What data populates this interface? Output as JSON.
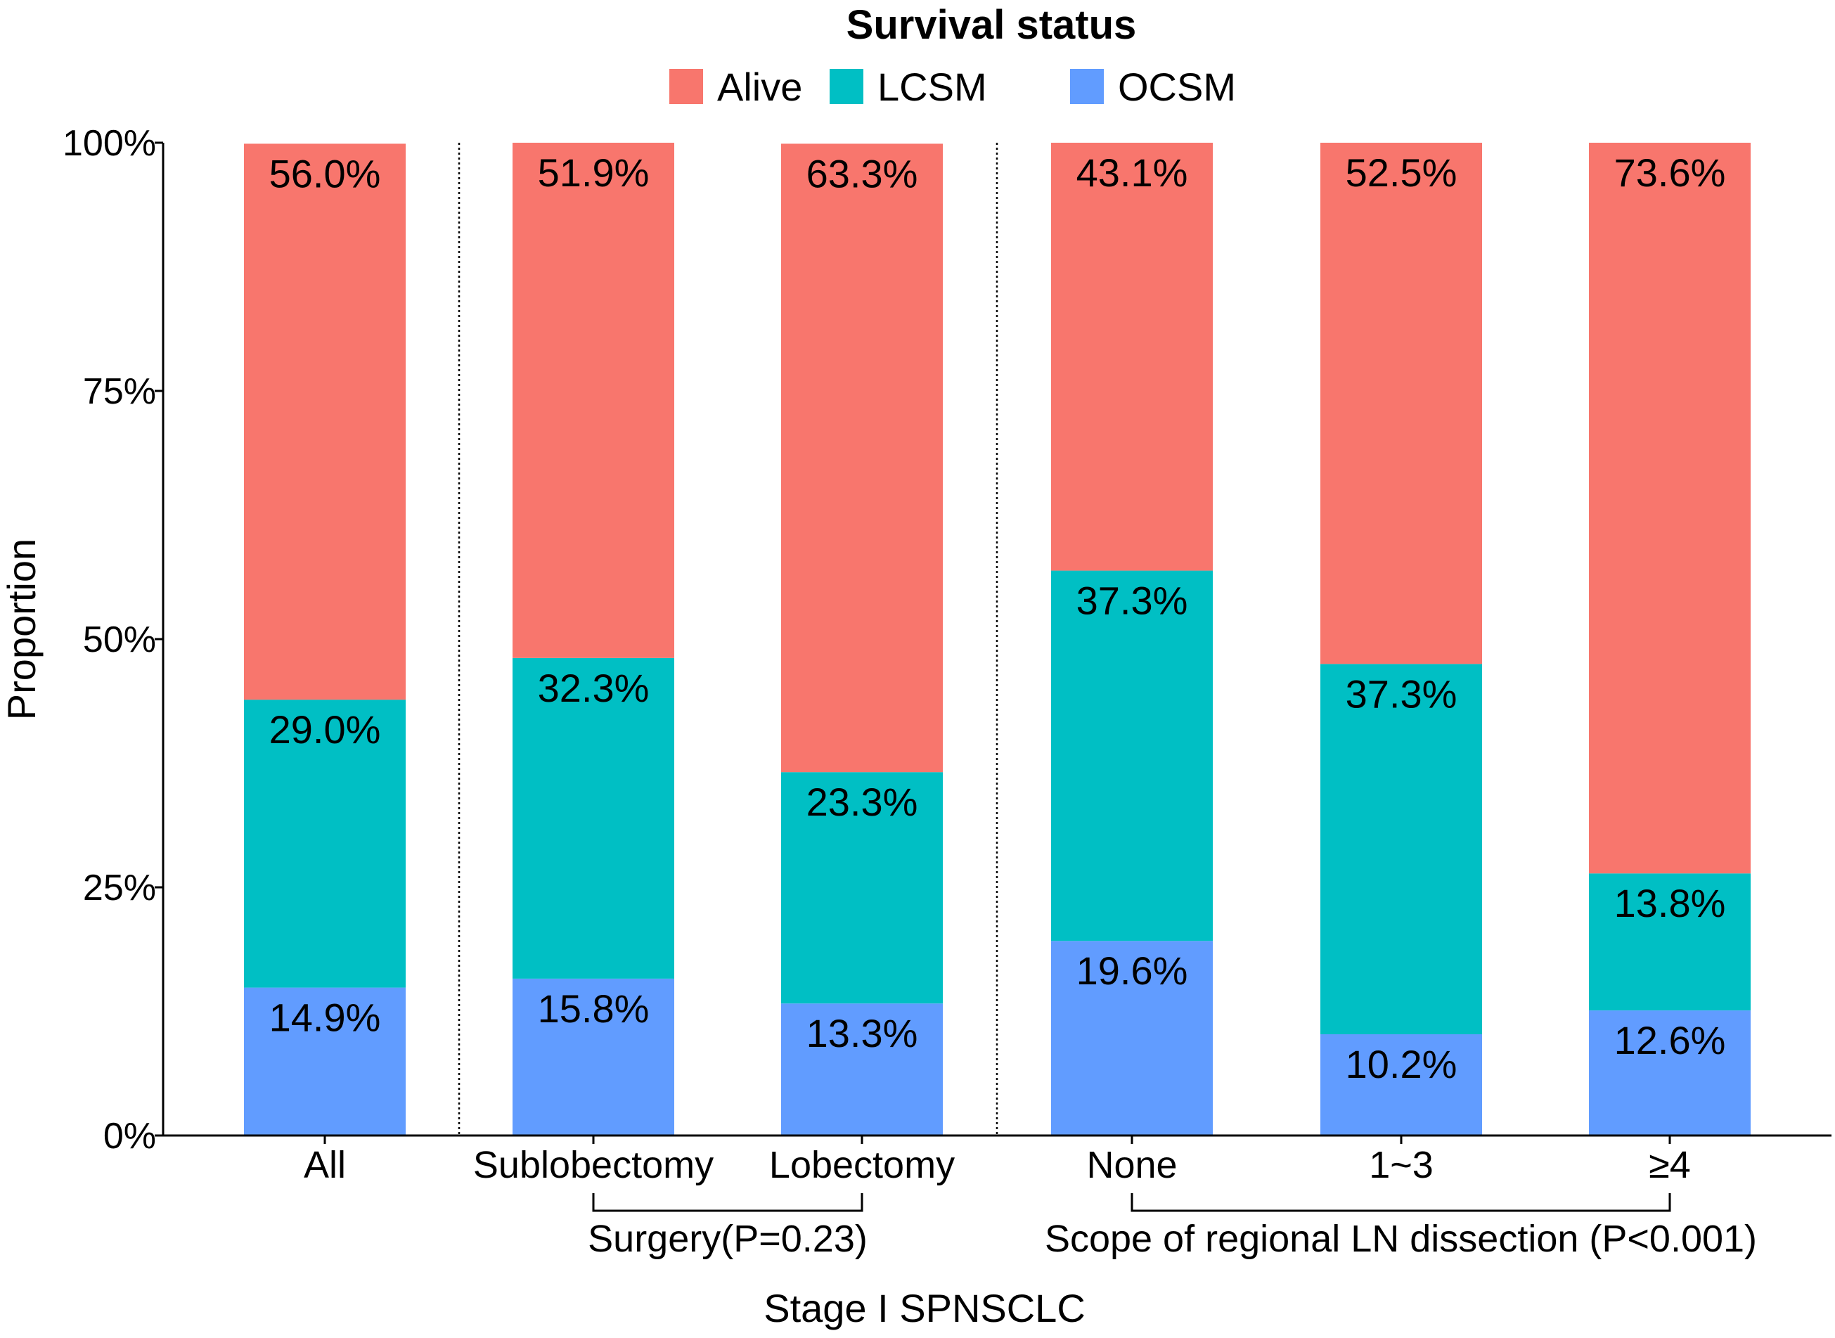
{
  "chart_data": {
    "type": "bar",
    "stacked": true,
    "title": "Survival status",
    "xlabel": "Stage I SPNSCLC",
    "ylabel": "Proportion",
    "ylim": [
      0,
      100
    ],
    "yticks": [
      0,
      25,
      50,
      75,
      100
    ],
    "ytick_labels": [
      "0%",
      "25%",
      "50%",
      "75%",
      "100%"
    ],
    "categories": [
      "All",
      "Sublobectomy",
      "Lobectomy",
      "None",
      "1~3",
      "≥4"
    ],
    "stack_order": [
      "OCSM",
      "LCSM",
      "Alive"
    ],
    "series": [
      {
        "name": "Alive",
        "color": "#F8766D",
        "values": [
          56.0,
          51.9,
          63.3,
          43.1,
          52.5,
          73.6
        ],
        "labels": [
          "56.0%",
          "51.9%",
          "63.3%",
          "43.1%",
          "52.5%",
          "73.6%"
        ]
      },
      {
        "name": "LCSM",
        "color": "#00BFC4",
        "values": [
          29.0,
          32.3,
          23.3,
          37.3,
          37.3,
          13.8
        ],
        "labels": [
          "29.0%",
          "32.3%",
          "23.3%",
          "37.3%",
          "37.3%",
          "13.8%"
        ]
      },
      {
        "name": "OCSM",
        "color": "#619CFF",
        "values": [
          14.9,
          15.8,
          13.3,
          19.6,
          10.2,
          12.6
        ],
        "labels": [
          "14.9%",
          "15.8%",
          "13.3%",
          "19.6%",
          "10.2%",
          "12.6%"
        ]
      }
    ],
    "legend": {
      "title": "Survival status",
      "entries": [
        "Alive",
        "LCSM",
        "OCSM"
      ],
      "position": "top"
    },
    "separators_after": [
      "All",
      "Lobectomy"
    ],
    "brackets": [
      {
        "from": "Sublobectomy",
        "to": "Lobectomy",
        "label": "Surgery(P=0.23)"
      },
      {
        "from": "None",
        "to": "≥4",
        "label": "Scope of regional LN dissection (P<0.001)"
      }
    ],
    "grid": false
  }
}
